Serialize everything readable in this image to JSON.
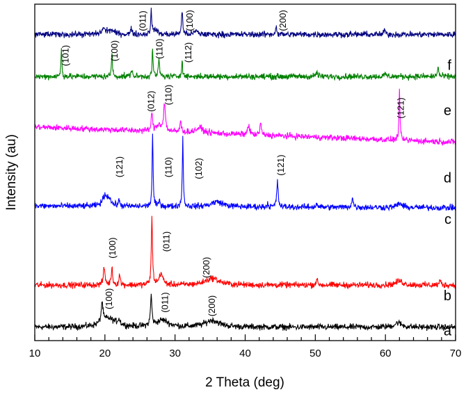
{
  "chart_data": {
    "type": "line",
    "title": "",
    "xlabel": "2 Theta (deg)",
    "ylabel": "Intensity (au)",
    "xlim": [
      10,
      70
    ],
    "ylim": [
      0,
      100
    ],
    "xticks": [
      10,
      20,
      30,
      40,
      50,
      60,
      70
    ],
    "grid": false,
    "legend": "none",
    "series": [
      {
        "name": "a",
        "color": "#000000",
        "baseline": [
          4,
          4
        ],
        "label_pos": [
          69.4,
          1.5
        ],
        "peaks": [
          [
            19.6,
            6,
            0.15
          ],
          [
            20.5,
            2.5,
            1.2
          ],
          [
            22,
            1.5,
            0.2
          ],
          [
            26.6,
            9,
            0.12
          ],
          [
            28.2,
            2,
            1.0
          ],
          [
            35.3,
            2,
            1.2
          ],
          [
            61.8,
            1.3,
            0.6
          ]
        ]
      },
      {
        "name": "b",
        "color": "#ff0000",
        "baseline": [
          16.5,
          16.5
        ],
        "label_pos": [
          69.4,
          12
        ],
        "peaks": [
          [
            19.9,
            5,
            0.15
          ],
          [
            21,
            5,
            0.12
          ],
          [
            22.1,
            3,
            0.12
          ],
          [
            26.7,
            20,
            0.1
          ],
          [
            28,
            3.5,
            0.3
          ],
          [
            35.3,
            2,
            1.2
          ],
          [
            50.2,
            1.5,
            0.15
          ],
          [
            62,
            1.2,
            0.6
          ],
          [
            67.8,
            1.5,
            0.12
          ]
        ]
      },
      {
        "name": "c",
        "color": "#0000ff",
        "baseline": [
          40,
          39.5
        ],
        "label_pos": [
          69.4,
          34.7
        ],
        "peaks": [
          [
            20,
            3,
            0.4
          ],
          [
            20.6,
            2,
            0.3
          ],
          [
            22,
            1.5,
            0.15
          ],
          [
            26.8,
            22,
            0.08
          ],
          [
            27.8,
            1.5,
            0.15
          ],
          [
            31.1,
            21,
            0.08
          ],
          [
            36,
            1.5,
            1.0
          ],
          [
            43.2,
            1,
            0.1
          ],
          [
            44.6,
            7.5,
            0.12
          ],
          [
            50.2,
            1,
            0.15
          ],
          [
            55.3,
            2.5,
            0.15
          ],
          [
            62,
            1.2,
            0.4
          ]
        ]
      },
      {
        "name": "d",
        "color": "#ff00ff",
        "baseline": [
          63.5,
          59
        ],
        "label_pos": [
          69.4,
          47
        ],
        "peaks": [
          [
            26.7,
            5,
            0.12
          ],
          [
            27.7,
            2,
            0.4
          ],
          [
            28.5,
            8,
            0.15
          ],
          [
            30.8,
            3,
            0.12
          ],
          [
            33.5,
            1.5,
            0.6
          ],
          [
            40.5,
            3,
            0.15
          ],
          [
            42.2,
            4,
            0.1
          ],
          [
            62,
            15,
            0.08
          ]
        ]
      },
      {
        "name": "e",
        "color": "#008000",
        "baseline": [
          78.5,
          78.5
        ],
        "label_pos": [
          69.4,
          67
        ],
        "peaks": [
          [
            13.8,
            9,
            0.07
          ],
          [
            21,
            7.5,
            0.08
          ],
          [
            23.8,
            2,
            0.12
          ],
          [
            26.8,
            8,
            0.08
          ],
          [
            27.7,
            5,
            0.1
          ],
          [
            31,
            5,
            0.08
          ],
          [
            50.2,
            1.2,
            0.15
          ],
          [
            60,
            0.8,
            0.15
          ],
          [
            67.5,
            3,
            0.1
          ]
        ]
      },
      {
        "name": "f",
        "color": "#000080",
        "baseline": [
          91,
          91
        ],
        "label_pos": [
          69.4,
          80.5
        ],
        "peaks": [
          [
            19.8,
            1.5,
            0.3
          ],
          [
            20.8,
            1.2,
            0.6
          ],
          [
            23.8,
            1.5,
            0.15
          ],
          [
            26.6,
            8,
            0.08
          ],
          [
            27.2,
            1.5,
            0.3
          ],
          [
            31,
            7,
            0.1
          ],
          [
            33,
            1,
            0.3
          ],
          [
            44.4,
            2.5,
            0.1
          ],
          [
            59.9,
            1.5,
            0.1
          ]
        ]
      }
    ],
    "annotations": [
      {
        "text": "(100)",
        "x": 21.0,
        "y": 9.3
      },
      {
        "text": "(011)",
        "x": 29.0,
        "y": 8.3
      },
      {
        "text": "(200)",
        "x": 35.7,
        "y": 7.2
      },
      {
        "text": "(100)",
        "x": 21.5,
        "y": 24.4
      },
      {
        "text": "(011)",
        "x": 29.2,
        "y": 26.4
      },
      {
        "text": "(200)",
        "x": 34.9,
        "y": 18.6
      },
      {
        "text": "(121)",
        "x": 22.5,
        "y": 48.5
      },
      {
        "text": "(110)",
        "x": 29.5,
        "y": 48.5
      },
      {
        "text": "(102)",
        "x": 33.8,
        "y": 48
      },
      {
        "text": "(121)",
        "x": 45.5,
        "y": 49
      },
      {
        "text": "(012)",
        "x": 27.0,
        "y": 68
      },
      {
        "text": "(110)",
        "x": 29.5,
        "y": 70
      },
      {
        "text": "(121)",
        "x": 62.6,
        "y": 66
      },
      {
        "text": "(101)",
        "x": 14.8,
        "y": 81.6
      },
      {
        "text": "(100)",
        "x": 21.8,
        "y": 83
      },
      {
        "text": "(110)",
        "x": 28.2,
        "y": 83.7
      },
      {
        "text": "(112)",
        "x": 32.3,
        "y": 82.6
      },
      {
        "text": "(011)",
        "x": 25.8,
        "y": 92
      },
      {
        "text": "(100)",
        "x": 32.5,
        "y": 92
      },
      {
        "text": "(200)",
        "x": 45.8,
        "y": 92
      }
    ]
  }
}
